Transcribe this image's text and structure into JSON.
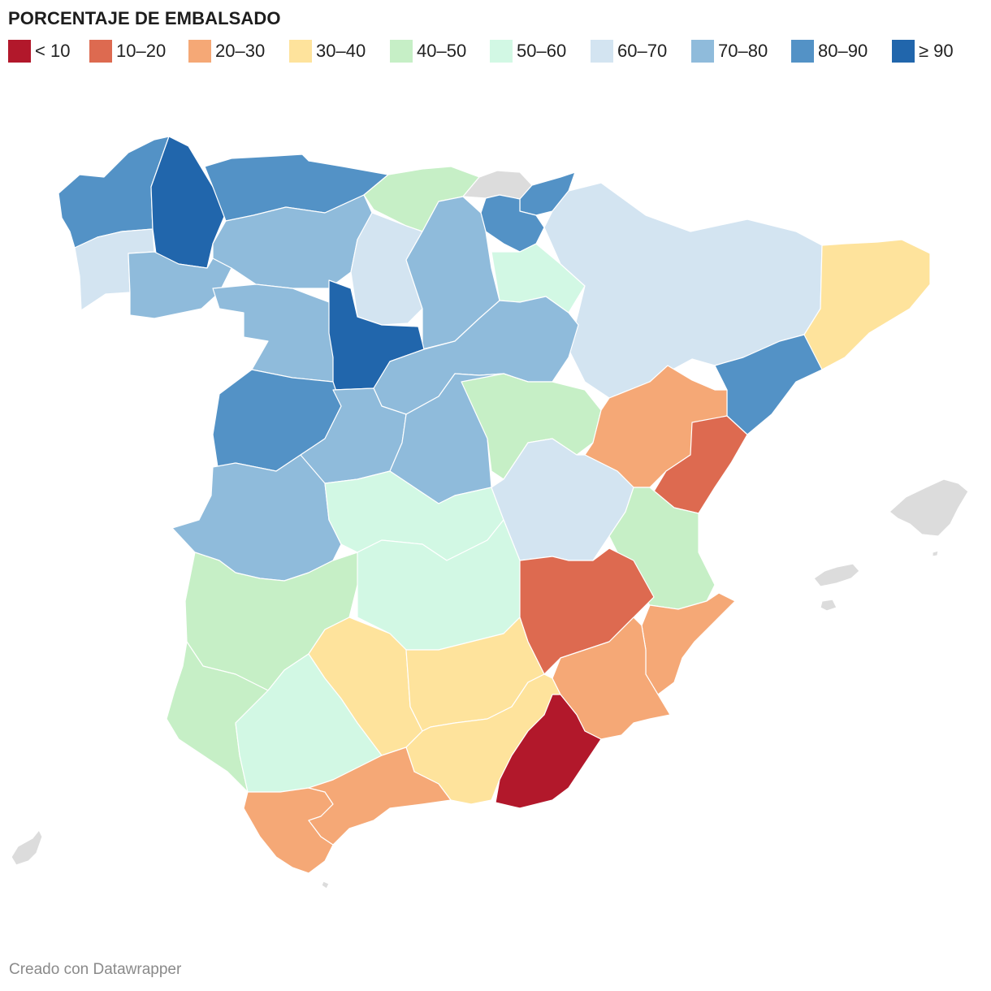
{
  "title": "PORCENTAJE DE EMBALSADO",
  "footer": "Creado con Datawrapper",
  "legend": [
    {
      "label": "< 10",
      "color": "#b2182b"
    },
    {
      "label": "10–20",
      "color": "#dd6a50"
    },
    {
      "label": "20–30",
      "color": "#f5a876"
    },
    {
      "label": "30–40",
      "color": "#fee39c"
    },
    {
      "label": "40–50",
      "color": "#c6efc6"
    },
    {
      "label": "50–60",
      "color": "#d2f8e4"
    },
    {
      "label": "60–70",
      "color": "#d3e4f1"
    },
    {
      "label": "70–80",
      "color": "#8fbbdb"
    },
    {
      "label": "80–90",
      "color": "#5392c6"
    },
    {
      "label": "≥ 90",
      "color": "#2166ac"
    }
  ],
  "no_data_color": "#dcdcdc",
  "regions": [
    {
      "id": "galicia-n",
      "bin": "80–90"
    },
    {
      "id": "galicia-w",
      "bin": "60–70"
    },
    {
      "id": "galicia-c",
      "bin": "≥ 90"
    },
    {
      "id": "galicia-s",
      "bin": "70–80"
    },
    {
      "id": "cantabrico-w",
      "bin": "80–90"
    },
    {
      "id": "cantabrico-e",
      "bin": "40–50"
    },
    {
      "id": "vasco",
      "bin": "no-data"
    },
    {
      "id": "navarra-n",
      "bin": "80–90"
    },
    {
      "id": "navarra-s",
      "bin": "80–90"
    },
    {
      "id": "duero-nw",
      "bin": "70–80"
    },
    {
      "id": "duero-n",
      "bin": "60–70"
    },
    {
      "id": "duero-ne",
      "bin": "70–80"
    },
    {
      "id": "rioja",
      "bin": "50–60"
    },
    {
      "id": "ebro",
      "bin": "60–70"
    },
    {
      "id": "duero-w",
      "bin": "70–80"
    },
    {
      "id": "duero-c",
      "bin": "≥ 90"
    },
    {
      "id": "duero-e",
      "bin": "70–80"
    },
    {
      "id": "catalunya",
      "bin": "30–40"
    },
    {
      "id": "ebro-s",
      "bin": "60–70"
    },
    {
      "id": "castellon",
      "bin": "80–90"
    },
    {
      "id": "tajo-w",
      "bin": "80–90"
    },
    {
      "id": "tajo-c",
      "bin": "70–80"
    },
    {
      "id": "tajo-e",
      "bin": "70–80"
    },
    {
      "id": "tajo-ne",
      "bin": "40–50"
    },
    {
      "id": "jucar-n",
      "bin": "20–30"
    },
    {
      "id": "valencia-n",
      "bin": "10–20"
    },
    {
      "id": "guadiana-w",
      "bin": "70–80"
    },
    {
      "id": "guadiana-c",
      "bin": "50–60"
    },
    {
      "id": "jucar-c",
      "bin": "60–70"
    },
    {
      "id": "valencia-s",
      "bin": "40–50"
    },
    {
      "id": "guadiana-sw",
      "bin": "40–50"
    },
    {
      "id": "guadiana-s",
      "bin": "50–60"
    },
    {
      "id": "segura-n",
      "bin": "10–20"
    },
    {
      "id": "alicante",
      "bin": "20–30"
    },
    {
      "id": "murcia",
      "bin": "20–30"
    },
    {
      "id": "huelva",
      "bin": "40–50"
    },
    {
      "id": "sevilla",
      "bin": "50–60"
    },
    {
      "id": "cordoba",
      "bin": "30–40"
    },
    {
      "id": "jaen",
      "bin": "30–40"
    },
    {
      "id": "granada",
      "bin": "30–40"
    },
    {
      "id": "almeria",
      "bin": "< 10"
    },
    {
      "id": "cadiz",
      "bin": "20–30"
    },
    {
      "id": "malaga",
      "bin": "20–30"
    },
    {
      "id": "mallorca",
      "bin": "no-data"
    },
    {
      "id": "menorca",
      "bin": "no-data"
    },
    {
      "id": "ibiza",
      "bin": "no-data"
    },
    {
      "id": "formentera",
      "bin": "no-data"
    },
    {
      "id": "ceuta-rock",
      "bin": "no-data"
    },
    {
      "id": "canarias-fragment",
      "bin": "no-data"
    }
  ]
}
